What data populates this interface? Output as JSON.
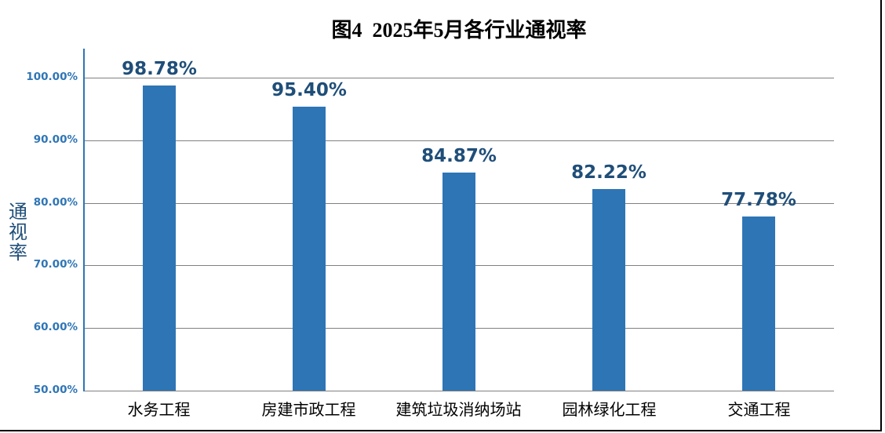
{
  "figure": {
    "title": "图4  2025年5月各行业通视率"
  },
  "chart_data": {
    "type": "bar",
    "title": "图4  2025年5月各行业通视率",
    "categories": [
      "水务工程",
      "房建市政工程",
      "建筑垃圾消纳场站",
      "园林绿化工程",
      "交通工程"
    ],
    "values": [
      98.78,
      95.4,
      84.87,
      82.22,
      77.78
    ],
    "value_labels": [
      "98.78%",
      "95.40%",
      "84.87%",
      "82.22%",
      "77.78%"
    ],
    "xlabel": "",
    "ylabel": "通视率",
    "ylim": [
      50,
      100
    ],
    "yticks": [
      50,
      60,
      70,
      80,
      90,
      100
    ],
    "ytick_labels": [
      "50.00%",
      "60.00%",
      "70.00%",
      "80.00%",
      "90.00%",
      "100.00%"
    ],
    "grid": true,
    "legend_position": "none",
    "colors": {
      "bar": "#2E75B6",
      "value_label": "#1F4E79",
      "tick_label": "#2E75B6",
      "y_axis_line": "#2E75B6",
      "gridline": "#808080",
      "title": "#000000",
      "category_label": "#000000",
      "cell_border": "#000000"
    }
  }
}
